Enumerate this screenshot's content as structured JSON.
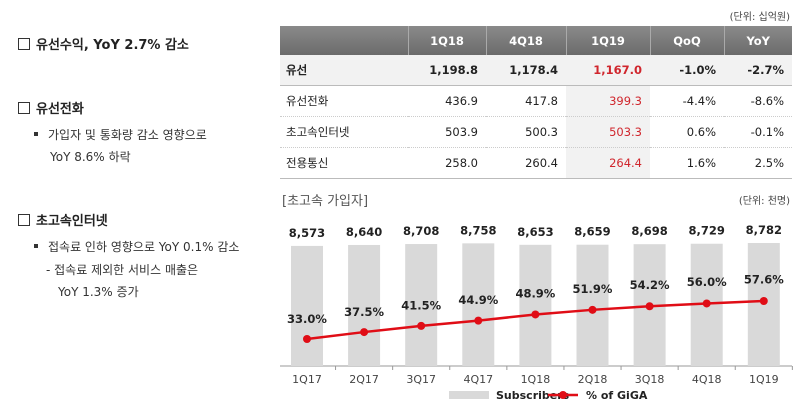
{
  "left": {
    "s1": {
      "title": "유선수익, YoY 2.7% 감소"
    },
    "s2": {
      "title": "유선전화",
      "bullet": "가입자 및 통화량 감소 영향으로",
      "bullet2": "YoY 8.6% 하락"
    },
    "s3": {
      "title": "초고속인터넷",
      "bullet": "접속료 인하 영향으로 YoY 0.1% 감소",
      "sub": "- 접속료 제외한 서비스 매출은",
      "sub2": "YoY 1.3% 증가"
    }
  },
  "table": {
    "unit": "(단위: 십억원)",
    "headers": [
      "",
      "1Q18",
      "4Q18",
      "1Q19",
      "QoQ",
      "YoY"
    ],
    "rows": [
      [
        "유선",
        "1,198.8",
        "1,178.4",
        "1,167.0",
        "-1.0%",
        "-2.7%"
      ],
      [
        "유선전화",
        "436.9",
        "417.8",
        "399.3",
        "-4.4%",
        "-8.6%"
      ],
      [
        "초고속인터넷",
        "503.9",
        "500.3",
        "503.3",
        "0.6%",
        "-0.1%"
      ],
      [
        "전용통신",
        "258.0",
        "260.4",
        "264.4",
        "1.6%",
        "2.5%"
      ]
    ]
  },
  "chart_data": {
    "type": "bar",
    "title": "[초고속 가입자]",
    "unit": "(단위: 천명)",
    "categories": [
      "1Q17",
      "2Q17",
      "3Q17",
      "4Q17",
      "1Q18",
      "2Q18",
      "3Q18",
      "4Q18",
      "1Q19"
    ],
    "series": [
      {
        "name": "Subscribers",
        "type": "bar",
        "values": [
          8573,
          8640,
          8708,
          8758,
          8653,
          8659,
          8698,
          8729,
          8782
        ],
        "labels": [
          "8,573",
          "8,640",
          "8,708",
          "8,758",
          "8,653",
          "8,659",
          "8,698",
          "8,729",
          "8,782"
        ],
        "color": "#d9d9d9"
      },
      {
        "name": "% of GiGA",
        "type": "line",
        "values": [
          33.0,
          37.5,
          41.5,
          44.9,
          48.9,
          51.9,
          54.2,
          56.0,
          57.6
        ],
        "labels": [
          "33.0%",
          "37.5%",
          "41.5%",
          "44.9%",
          "48.9%",
          "51.9%",
          "54.2%",
          "56.0%",
          "57.6%"
        ],
        "color": "#e00d16"
      }
    ],
    "legend": "bottom"
  }
}
